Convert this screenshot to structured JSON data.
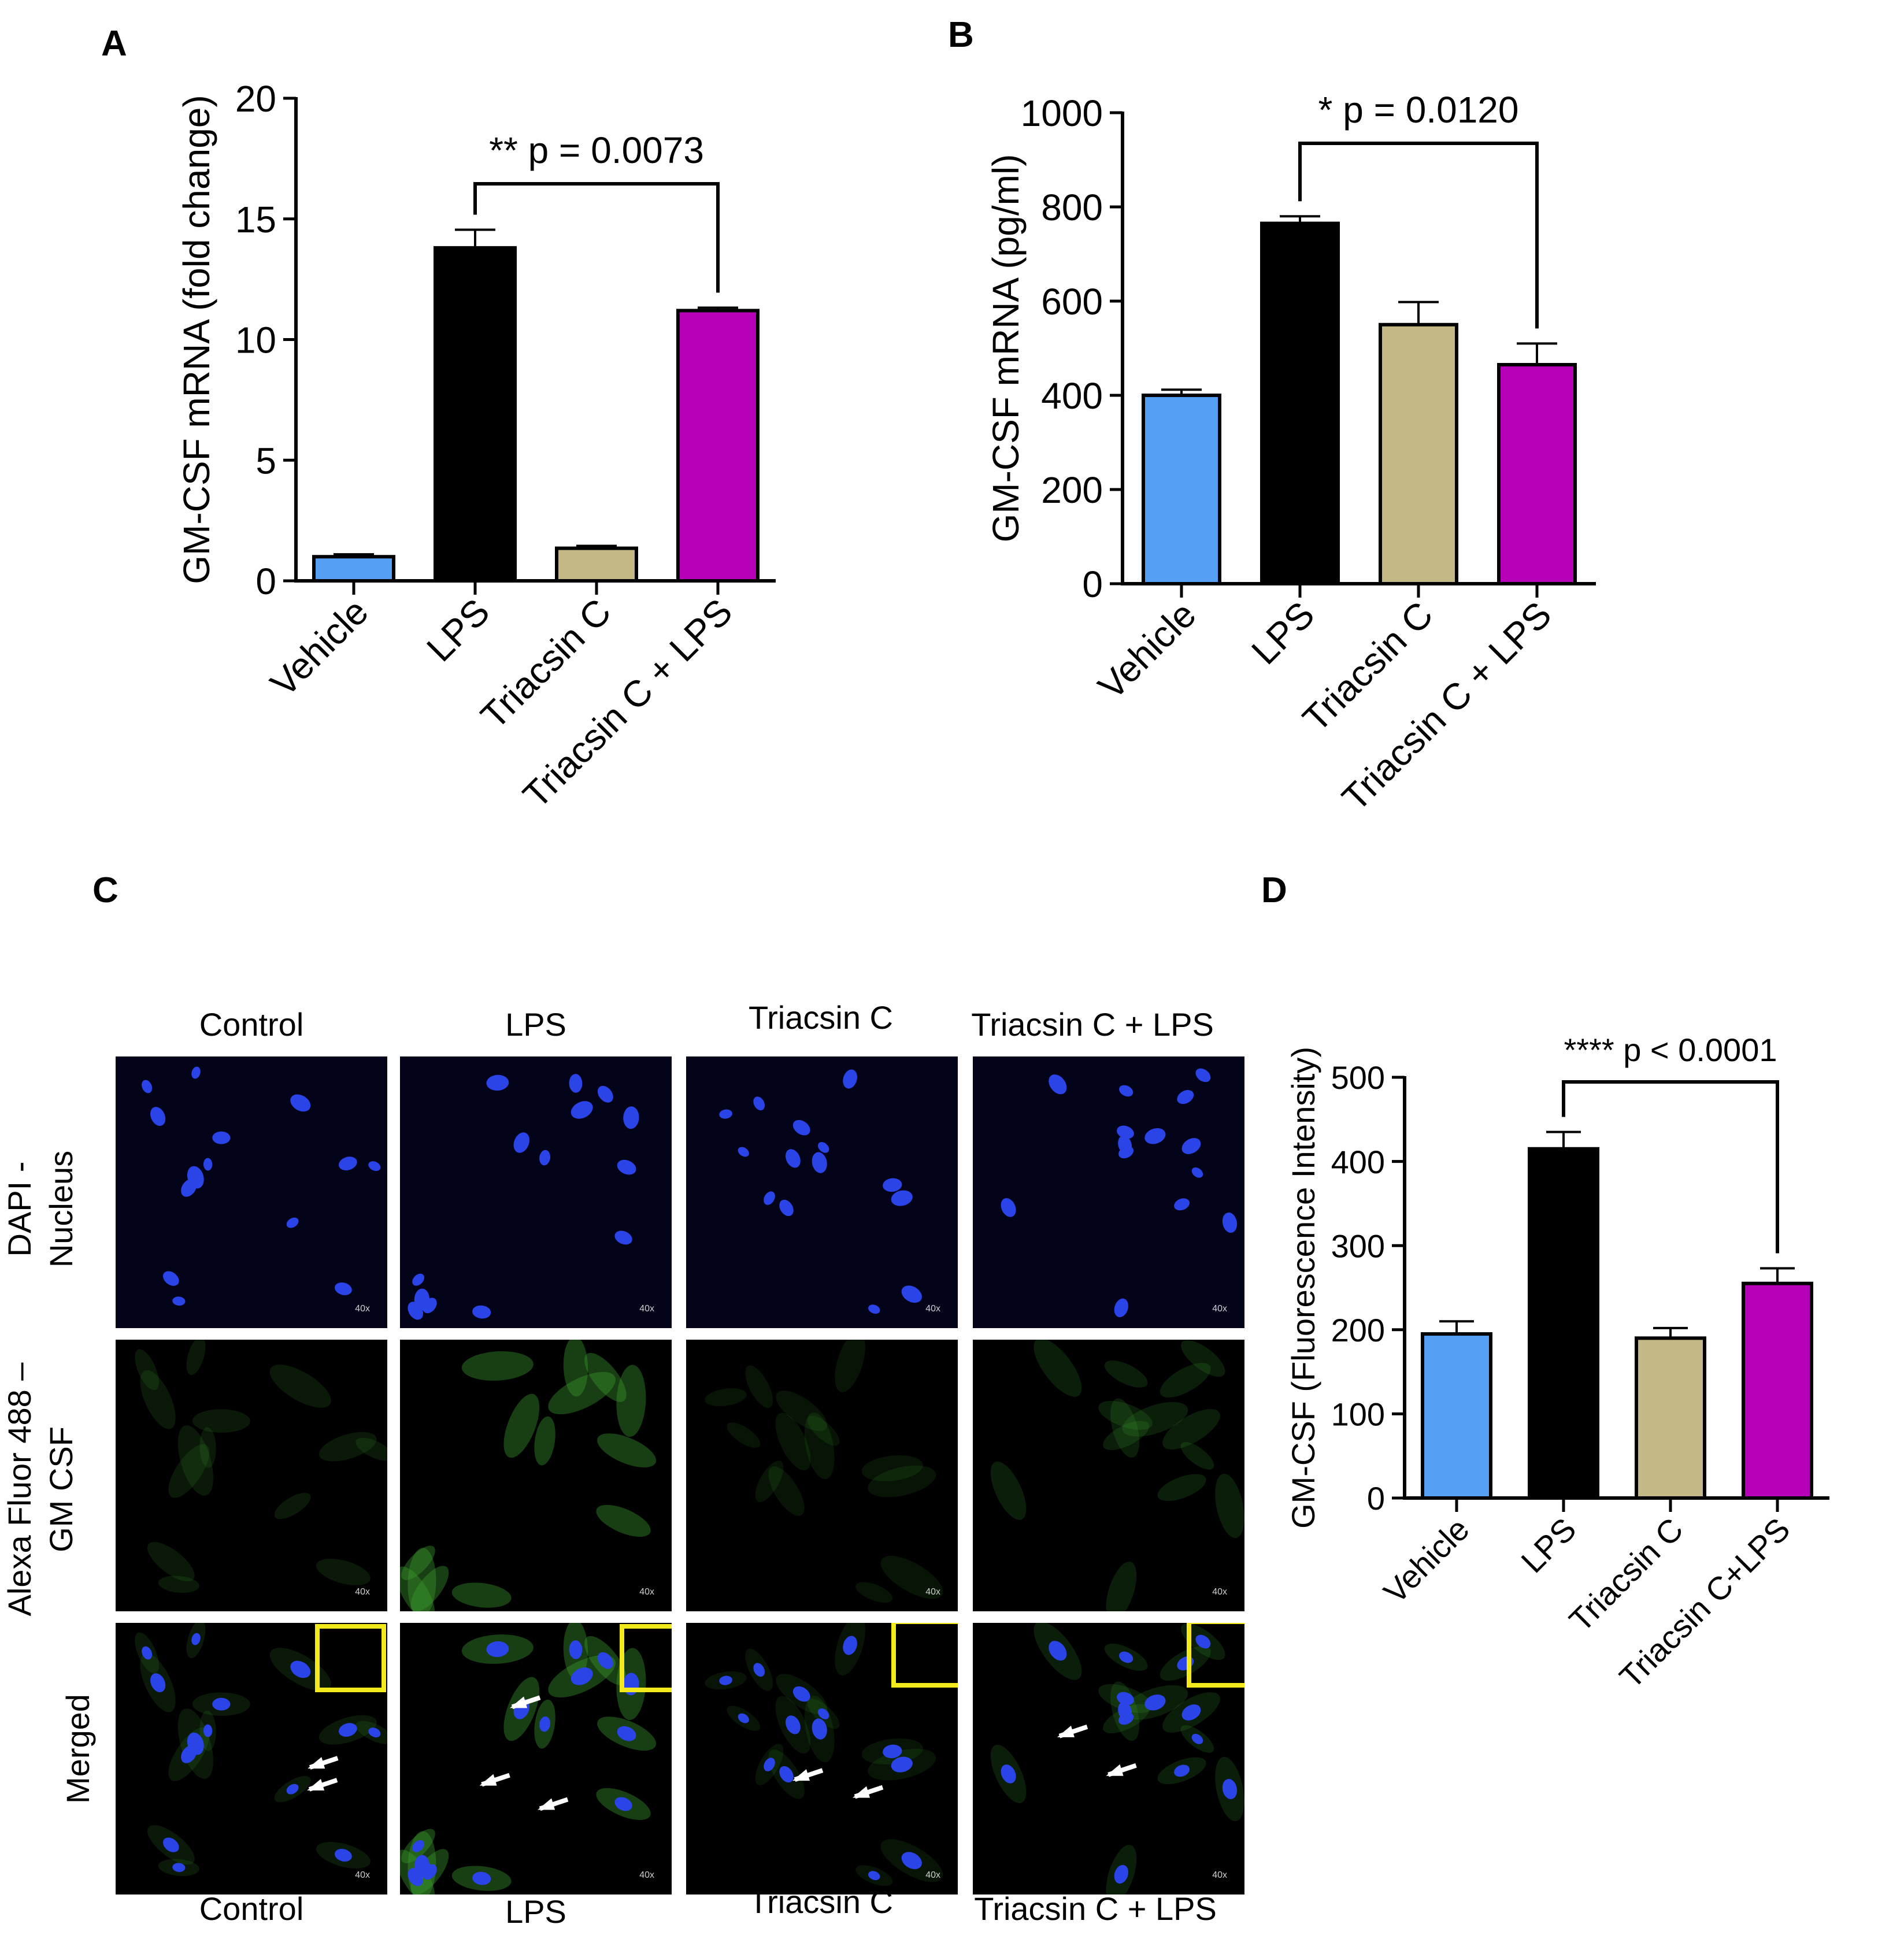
{
  "panels": {
    "a": "A",
    "b": "B",
    "c": "C",
    "d": "D"
  },
  "colors": {
    "vehicle": "#559ff5",
    "lps": "#000000",
    "triacsin": "#c4b886",
    "triacsin_lps": "#b800b8",
    "dapi": "#2b44e8",
    "gfp": "#3a9a2e",
    "box": "#f2ea1d",
    "arrow": "#ffffff"
  },
  "chart_data": [
    {
      "id": "A",
      "type": "bar",
      "categories": [
        "Vehicle",
        "LPS",
        "Triacsin C",
        "Triacsin C + LPS"
      ],
      "values": [
        1.0,
        13.8,
        1.35,
        11.2
      ],
      "errors": [
        0.1,
        0.75,
        0.1,
        0.12
      ],
      "ylabel": "GM-CSF mRNA (fold change)",
      "ylim": [
        0,
        20
      ],
      "yticks": [
        0,
        5,
        10,
        15,
        20
      ],
      "yticklabels": [
        "0",
        "5",
        "10",
        "15",
        "20"
      ],
      "annotation": {
        "from": 1,
        "to": 3,
        "text": "** p = 0.0073"
      }
    },
    {
      "id": "B",
      "type": "bar",
      "categories": [
        "Vehicle",
        "LPS",
        "Triacsin C",
        "Triacsin C + LPS"
      ],
      "values": [
        400,
        765,
        550,
        465
      ],
      "errors": [
        12,
        15,
        48,
        45
      ],
      "ylabel": "GM-CSF mRNA (pg/ml)",
      "ylim": [
        0,
        1000
      ],
      "yticks": [
        0,
        200,
        400,
        600,
        800,
        1000
      ],
      "yticklabels": [
        "0",
        "200",
        "400",
        "600",
        "800",
        "1000"
      ],
      "annotation": {
        "from": 1,
        "to": 3,
        "text": "* p = 0.0120"
      }
    },
    {
      "id": "D",
      "type": "bar",
      "categories": [
        "Vehicle",
        "LPS",
        "Triacsin C",
        "Triacsin C+LPS"
      ],
      "values": [
        195,
        415,
        190,
        255
      ],
      "errors": [
        15,
        20,
        12,
        18
      ],
      "ylabel": "GM-CSF (Fluorescence Intensity)",
      "ylim": [
        0,
        500
      ],
      "yticks": [
        0,
        100,
        200,
        300,
        400,
        500
      ],
      "yticklabels": [
        "0",
        "100",
        "200",
        "300",
        "400",
        "500"
      ],
      "annotation": {
        "from": 1,
        "to": 3,
        "text": "**** p < 0.0001"
      }
    }
  ],
  "micrographs": {
    "column_titles": [
      "Control",
      "LPS",
      "Triacsin C",
      "Triacsin C + LPS"
    ],
    "column_footers": [
      "Control",
      "LPS",
      "Triacsin C",
      "Triacsin C + LPS"
    ],
    "row_labels": [
      {
        "line1": "DAPI -",
        "line2": "Nucleus"
      },
      {
        "line1": "Alexa Fluor 488 –",
        "line2": "GM CSF"
      },
      {
        "line1": "Merged",
        "line2": ""
      }
    ],
    "magnification": "40x",
    "green_intensity": [
      0.3,
      0.75,
      0.25,
      0.35
    ]
  }
}
